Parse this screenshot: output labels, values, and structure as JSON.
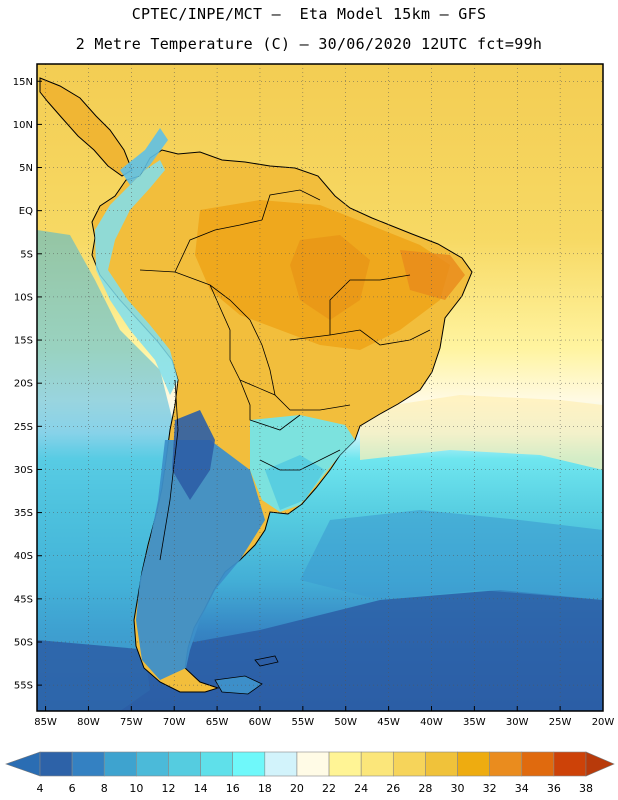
{
  "header": {
    "line1": "CPTEC/INPE/MCT –  Eta Model 15km – GFS",
    "line2": "2 Metre Temperature (C) – 30/06/2020 12UTC fct=99h"
  },
  "map": {
    "lat_ticks": [
      {
        "value": 15,
        "label": "15N"
      },
      {
        "value": 10,
        "label": "10N"
      },
      {
        "value": 5,
        "label": "5N"
      },
      {
        "value": 0,
        "label": "EQ"
      },
      {
        "value": -5,
        "label": "5S"
      },
      {
        "value": -10,
        "label": "10S"
      },
      {
        "value": -15,
        "label": "15S"
      },
      {
        "value": -20,
        "label": "20S"
      },
      {
        "value": -25,
        "label": "25S"
      },
      {
        "value": -30,
        "label": "30S"
      },
      {
        "value": -35,
        "label": "35S"
      },
      {
        "value": -40,
        "label": "40S"
      },
      {
        "value": -45,
        "label": "45S"
      },
      {
        "value": -50,
        "label": "50S"
      },
      {
        "value": -55,
        "label": "55S"
      }
    ],
    "lon_ticks": [
      {
        "value": -85,
        "label": "85W"
      },
      {
        "value": -80,
        "label": "80W"
      },
      {
        "value": -75,
        "label": "75W"
      },
      {
        "value": -70,
        "label": "70W"
      },
      {
        "value": -65,
        "label": "65W"
      },
      {
        "value": -60,
        "label": "60W"
      },
      {
        "value": -55,
        "label": "55W"
      },
      {
        "value": -50,
        "label": "50W"
      },
      {
        "value": -45,
        "label": "45W"
      },
      {
        "value": -40,
        "label": "40W"
      },
      {
        "value": -35,
        "label": "35W"
      },
      {
        "value": -30,
        "label": "30W"
      },
      {
        "value": -25,
        "label": "25W"
      },
      {
        "value": -20,
        "label": "20W"
      }
    ],
    "extent": {
      "lon": [
        -86,
        -20
      ],
      "lat": [
        -58,
        17
      ]
    }
  },
  "colorbar": {
    "labels": [
      "4",
      "6",
      "8",
      "10",
      "12",
      "14",
      "16",
      "18",
      "20",
      "22",
      "24",
      "26",
      "28",
      "30",
      "32",
      "34",
      "36",
      "38"
    ],
    "low_color": "#2a6db3",
    "high_color": "#b83a0a",
    "colors": [
      "#2d62a8",
      "#3481c2",
      "#3ea3cf",
      "#4bbad9",
      "#55cce0",
      "#5fe0ea",
      "#6ff8fa",
      "#d2f3fb",
      "#fffbe6",
      "#fff495",
      "#fbe67a",
      "#f6d45a",
      "#f0c23a",
      "#eeac10",
      "#ea8c1e",
      "#e06a0e",
      "#cd4208"
    ]
  },
  "palette": {
    "ocean_warm": "#f5cf55",
    "land_hot": "#eea71a",
    "ocean_cold": "#2e67ad",
    "coast": "#000000"
  }
}
